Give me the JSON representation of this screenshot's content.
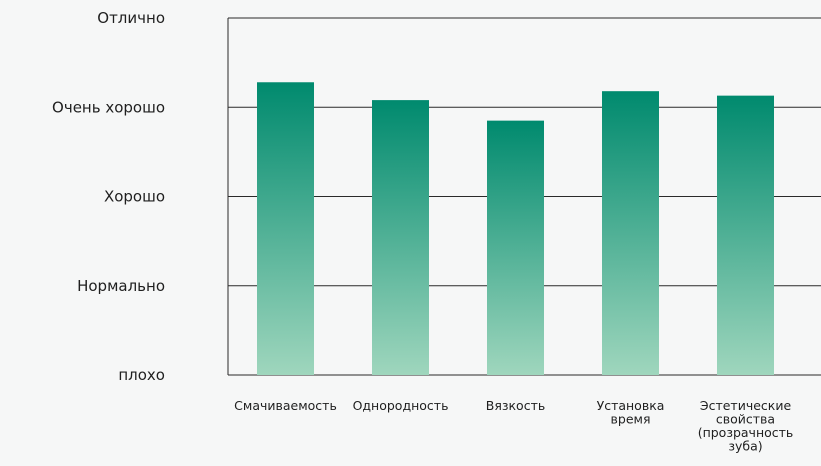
{
  "chart_data": {
    "type": "bar",
    "categories": [
      [
        "Смачиваемость"
      ],
      [
        "Однородность"
      ],
      [
        "Вязкость"
      ],
      [
        "Установка",
        "время"
      ],
      [
        "Эстетические",
        "свойства",
        "(прозрачность",
        "зуба)"
      ]
    ],
    "values": [
      3.28,
      3.08,
      2.85,
      3.18,
      3.13
    ],
    "ytick_labels": [
      "плохо",
      "Нормально",
      "Хорошо",
      "Очень хорошо",
      "Отлично"
    ],
    "ylim": [
      0,
      4
    ],
    "grid": true,
    "legend": "none",
    "colors": {
      "bar_top": "#008a6e",
      "bar_bottom": "#9fd6bd",
      "gridline": "#2a2a2a",
      "background": "#f6f7f7"
    }
  }
}
